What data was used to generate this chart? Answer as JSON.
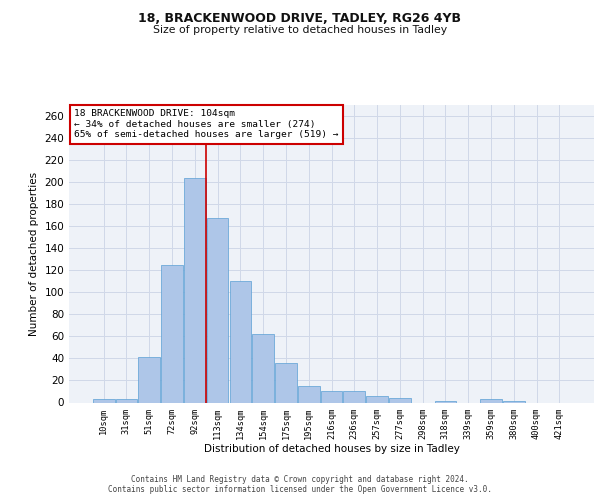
{
  "title1": "18, BRACKENWOOD DRIVE, TADLEY, RG26 4YB",
  "title2": "Size of property relative to detached houses in Tadley",
  "xlabel": "Distribution of detached houses by size in Tadley",
  "ylabel": "Number of detached properties",
  "categories": [
    "10sqm",
    "31sqm",
    "51sqm",
    "72sqm",
    "92sqm",
    "113sqm",
    "134sqm",
    "154sqm",
    "175sqm",
    "195sqm",
    "216sqm",
    "236sqm",
    "257sqm",
    "277sqm",
    "298sqm",
    "318sqm",
    "339sqm",
    "359sqm",
    "380sqm",
    "400sqm",
    "421sqm"
  ],
  "bar_heights": [
    3,
    3,
    41,
    125,
    204,
    167,
    110,
    62,
    36,
    15,
    10,
    10,
    6,
    4,
    0,
    1,
    0,
    3,
    1,
    0,
    0
  ],
  "bar_color": "#aec6e8",
  "bar_edge_color": "#5a9fd4",
  "grid_color": "#d0d8e8",
  "background_color": "#eef2f8",
  "vline_x": 4.5,
  "vline_color": "#cc0000",
  "annotation_text": "18 BRACKENWOOD DRIVE: 104sqm\n← 34% of detached houses are smaller (274)\n65% of semi-detached houses are larger (519) →",
  "annotation_box_color": "#ffffff",
  "annotation_box_edge_color": "#cc0000",
  "ylim": [
    0,
    270
  ],
  "yticks": [
    0,
    20,
    40,
    60,
    80,
    100,
    120,
    140,
    160,
    180,
    200,
    220,
    240,
    260
  ],
  "footnote1": "Contains HM Land Registry data © Crown copyright and database right 2024.",
  "footnote2": "Contains public sector information licensed under the Open Government Licence v3.0."
}
